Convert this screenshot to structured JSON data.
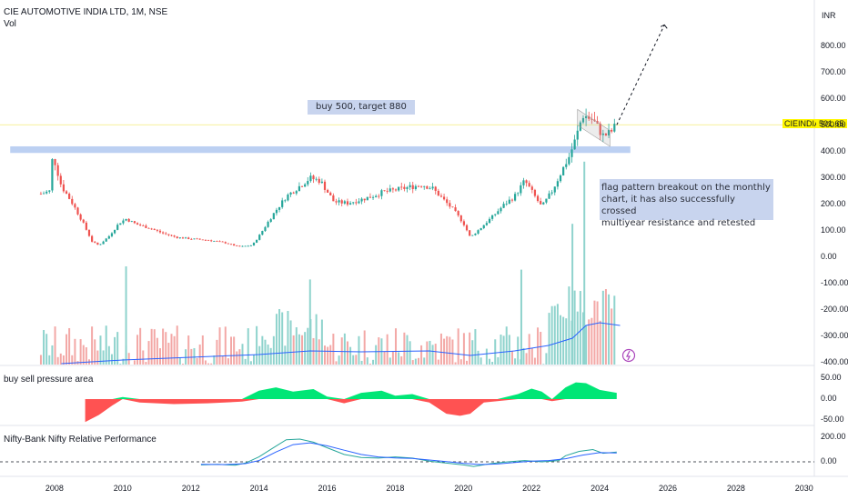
{
  "header": {
    "title": "CIE AUTOMOTIVE INDIA LTD, 1M, NSE",
    "vol_label": "Vol",
    "currency": "INR"
  },
  "price_tag": {
    "symbol": "CIEINDIA",
    "value": "501.65"
  },
  "panes": {
    "pressure_title": "buy sell pressure area",
    "relperf_title": "Nifty-Bank Nifty Relative Performance"
  },
  "annotations": {
    "target": "buy 500, target 880",
    "pattern_line1": "flag pattern breakout on the monthly",
    "pattern_line2": "chart, it has also successfully crossed",
    "pattern_line3": "multiyear resistance and retested"
  },
  "colors": {
    "up": "#26a69a",
    "down": "#ef5350",
    "accent": "#2962ff",
    "resistance": "#bcd0f2",
    "price_tag": "#fff700",
    "pressure_pos": "#00e676",
    "pressure_neg": "#ff5252"
  },
  "chart_data": [
    {
      "type": "candlestick",
      "name": "CIEINDIA price (monthly)",
      "y_ticks": [
        "800.00",
        "700.00",
        "600.00",
        "500.00",
        "400.00",
        "300.00",
        "200.00",
        "100.00",
        "0.00",
        "-100.00",
        "-200.00",
        "-300.00",
        "-400.00"
      ],
      "ylim": [
        -400,
        900
      ],
      "x_ticks": [
        "2008",
        "2010",
        "2012",
        "2014",
        "2016",
        "2018",
        "2020",
        "2022",
        "2024",
        "2026",
        "2028",
        "2030"
      ],
      "xlim": [
        2006.4,
        2030.3
      ],
      "last_price": 501.65,
      "resistance_zone": [
        395,
        420
      ],
      "projection_target": 880,
      "price_path": [
        [
          2007.6,
          240
        ],
        [
          2007.85,
          250
        ],
        [
          2007.95,
          390
        ],
        [
          2008.2,
          270
        ],
        [
          2008.5,
          210
        ],
        [
          2008.8,
          140
        ],
        [
          2009.1,
          60
        ],
        [
          2009.3,
          45
        ],
        [
          2009.6,
          80
        ],
        [
          2009.9,
          130
        ],
        [
          2010.1,
          145
        ],
        [
          2010.4,
          125
        ],
        [
          2010.8,
          110
        ],
        [
          2011.2,
          90
        ],
        [
          2011.6,
          75
        ],
        [
          2012.0,
          70
        ],
        [
          2012.5,
          65
        ],
        [
          2013.0,
          55
        ],
        [
          2013.4,
          40
        ],
        [
          2013.8,
          45
        ],
        [
          2014.0,
          80
        ],
        [
          2014.4,
          160
        ],
        [
          2014.8,
          230
        ],
        [
          2015.2,
          270
        ],
        [
          2015.5,
          300
        ],
        [
          2015.8,
          290
        ],
        [
          2016.2,
          210
        ],
        [
          2016.6,
          205
        ],
        [
          2016.9,
          215
        ],
        [
          2017.3,
          230
        ],
        [
          2017.6,
          245
        ],
        [
          2018.0,
          255
        ],
        [
          2018.4,
          265
        ],
        [
          2018.8,
          275
        ],
        [
          2019.1,
          260
        ],
        [
          2019.4,
          220
        ],
        [
          2019.7,
          180
        ],
        [
          2020.0,
          130
        ],
        [
          2020.2,
          75
        ],
        [
          2020.5,
          110
        ],
        [
          2020.9,
          160
        ],
        [
          2021.2,
          200
        ],
        [
          2021.5,
          230
        ],
        [
          2021.8,
          290
        ],
        [
          2022.0,
          250
        ],
        [
          2022.3,
          190
        ],
        [
          2022.6,
          250
        ],
        [
          2022.9,
          330
        ],
        [
          2023.1,
          380
        ],
        [
          2023.3,
          450
        ],
        [
          2023.5,
          540
        ],
        [
          2023.8,
          520
        ],
        [
          2024.1,
          460
        ],
        [
          2024.3,
          470
        ],
        [
          2024.5,
          501
        ]
      ],
      "volume_wide_bars": [
        [
          2010.1,
          0.3
        ],
        [
          2015.5,
          0.26
        ],
        [
          2021.7,
          0.29
        ],
        [
          2023.2,
          0.43
        ],
        [
          2023.55,
          0.62
        ]
      ]
    },
    {
      "type": "area",
      "name": "buy sell pressure area",
      "y_ticks": [
        "50.00",
        "0.00",
        "-50.00"
      ],
      "ylim": [
        -60,
        60
      ],
      "series": [
        [
          2008.9,
          -55
        ],
        [
          2009.3,
          -38
        ],
        [
          2009.7,
          -15
        ],
        [
          2010.0,
          5
        ],
        [
          2010.5,
          -8
        ],
        [
          2011.5,
          -12
        ],
        [
          2012.5,
          -10
        ],
        [
          2013.5,
          -6
        ],
        [
          2014.0,
          20
        ],
        [
          2014.5,
          28
        ],
        [
          2015.0,
          18
        ],
        [
          2015.6,
          24
        ],
        [
          2016.0,
          6
        ],
        [
          2016.5,
          -10
        ],
        [
          2017.0,
          15
        ],
        [
          2017.6,
          20
        ],
        [
          2018.0,
          8
        ],
        [
          2018.5,
          12
        ],
        [
          2019.0,
          -8
        ],
        [
          2019.5,
          -35
        ],
        [
          2019.9,
          -40
        ],
        [
          2020.2,
          -35
        ],
        [
          2020.6,
          -8
        ],
        [
          2021.0,
          -5
        ],
        [
          2021.6,
          12
        ],
        [
          2022.0,
          25
        ],
        [
          2022.3,
          18
        ],
        [
          2022.6,
          -5
        ],
        [
          2023.0,
          28
        ],
        [
          2023.3,
          40
        ],
        [
          2023.6,
          38
        ],
        [
          2024.0,
          22
        ],
        [
          2024.5,
          15
        ]
      ]
    },
    {
      "type": "line",
      "name": "Nifty-Bank Nifty Relative Performance",
      "y_ticks": [
        "200.00",
        "0.00"
      ],
      "ylim": [
        -55,
        215
      ],
      "series": [
        {
          "name": "relative performance",
          "color": "#26a69a",
          "points": [
            [
              2012.3,
              -25
            ],
            [
              2012.8,
              -20
            ],
            [
              2013.3,
              -28
            ],
            [
              2013.6,
              -10
            ],
            [
              2014.0,
              40
            ],
            [
              2014.4,
              110
            ],
            [
              2014.8,
              180
            ],
            [
              2015.2,
              185
            ],
            [
              2015.6,
              160
            ],
            [
              2016.0,
              115
            ],
            [
              2016.5,
              60
            ],
            [
              2017.0,
              35
            ],
            [
              2017.5,
              30
            ],
            [
              2018.0,
              40
            ],
            [
              2018.5,
              30
            ],
            [
              2019.0,
              5
            ],
            [
              2019.5,
              -10
            ],
            [
              2020.0,
              -25
            ],
            [
              2020.3,
              -38
            ],
            [
              2020.8,
              -15
            ],
            [
              2021.3,
              0
            ],
            [
              2021.8,
              10
            ],
            [
              2022.3,
              0
            ],
            [
              2022.8,
              10
            ],
            [
              2023.0,
              50
            ],
            [
              2023.4,
              85
            ],
            [
              2023.8,
              100
            ],
            [
              2024.1,
              70
            ],
            [
              2024.5,
              80
            ]
          ]
        },
        {
          "name": "moving average",
          "color": "#2962ff",
          "points": [
            [
              2012.3,
              -20
            ],
            [
              2013.0,
              -22
            ],
            [
              2013.6,
              -15
            ],
            [
              2014.0,
              10
            ],
            [
              2014.5,
              80
            ],
            [
              2015.0,
              140
            ],
            [
              2015.5,
              155
            ],
            [
              2016.0,
              130
            ],
            [
              2016.5,
              95
            ],
            [
              2017.0,
              60
            ],
            [
              2017.5,
              40
            ],
            [
              2018.0,
              32
            ],
            [
              2018.5,
              28
            ],
            [
              2019.0,
              15
            ],
            [
              2019.5,
              2
            ],
            [
              2020.0,
              -12
            ],
            [
              2020.5,
              -22
            ],
            [
              2021.0,
              -18
            ],
            [
              2021.5,
              -5
            ],
            [
              2022.0,
              5
            ],
            [
              2022.5,
              10
            ],
            [
              2023.0,
              25
            ],
            [
              2023.5,
              55
            ],
            [
              2024.0,
              75
            ],
            [
              2024.5,
              72
            ]
          ]
        }
      ]
    }
  ]
}
